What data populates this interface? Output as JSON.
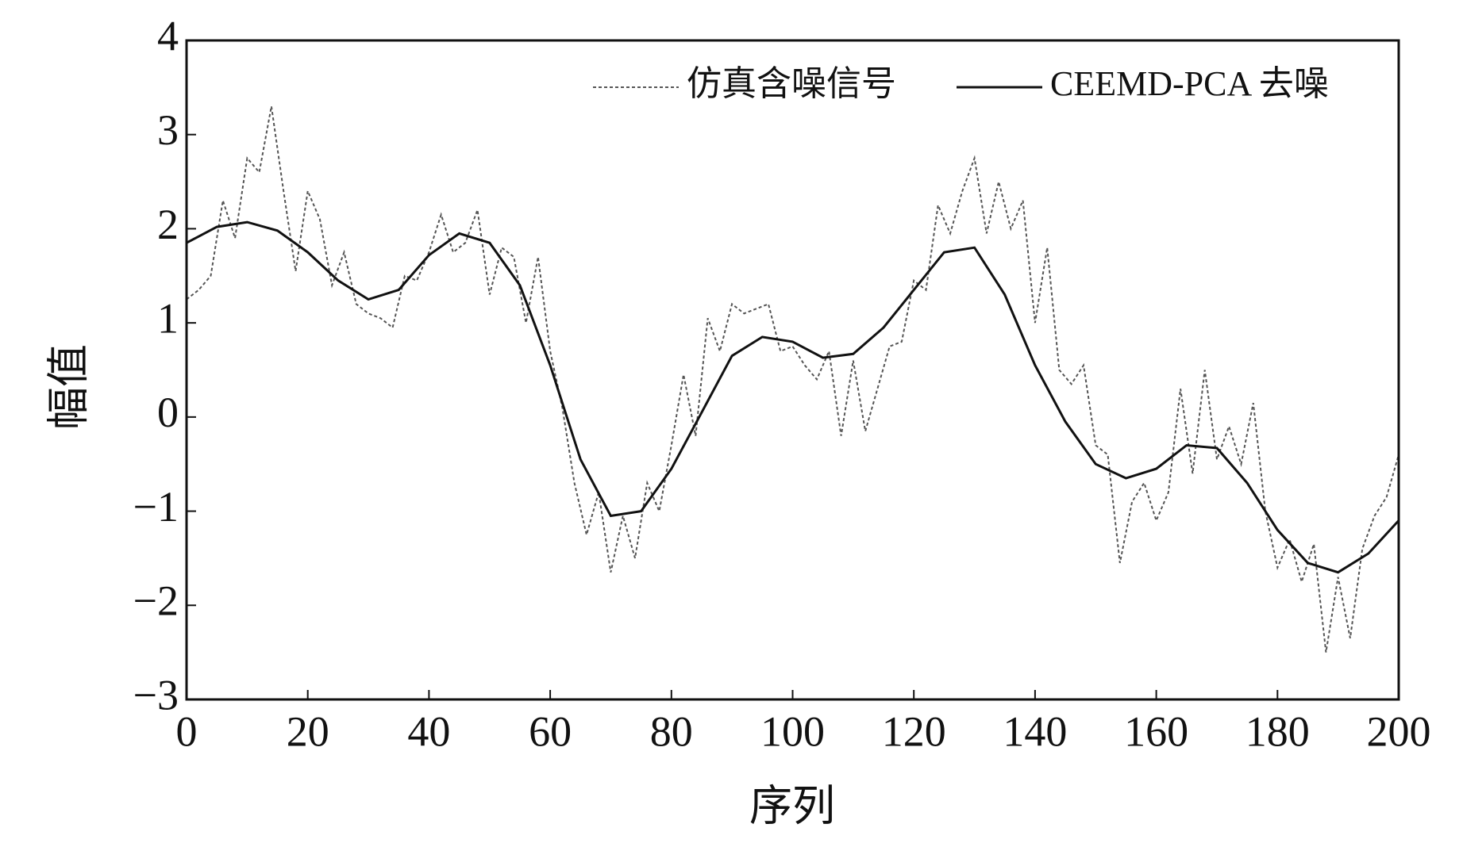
{
  "chart_data": {
    "type": "line",
    "xlabel": "序列",
    "ylabel": "幅值",
    "xlim": [
      0,
      200
    ],
    "ylim": [
      -3,
      4
    ],
    "xticks": [
      0,
      20,
      40,
      60,
      80,
      100,
      120,
      140,
      160,
      180,
      200
    ],
    "yticks": [
      {
        "value": -3,
        "label": "−3"
      },
      {
        "value": -2,
        "label": "−2"
      },
      {
        "value": -1,
        "label": "−1"
      },
      0,
      1,
      2,
      3,
      4
    ],
    "legend": "upper right",
    "series": [
      {
        "name": "仿真含噪信号",
        "color": "#555555",
        "dashed": true,
        "x": [
          0,
          2,
          4,
          6,
          8,
          10,
          12,
          14,
          16,
          18,
          20,
          22,
          24,
          26,
          28,
          30,
          32,
          34,
          36,
          38,
          40,
          42,
          44,
          46,
          48,
          50,
          52,
          54,
          56,
          58,
          60,
          62,
          64,
          66,
          68,
          70,
          72,
          74,
          76,
          78,
          80,
          82,
          84,
          86,
          88,
          90,
          92,
          94,
          96,
          98,
          100,
          102,
          104,
          106,
          108,
          110,
          112,
          114,
          116,
          118,
          120,
          122,
          124,
          126,
          128,
          130,
          132,
          134,
          136,
          138,
          140,
          142,
          144,
          146,
          148,
          150,
          152,
          154,
          156,
          158,
          160,
          162,
          164,
          166,
          168,
          170,
          172,
          174,
          176,
          178,
          180,
          182,
          184,
          186,
          188,
          190,
          192,
          194,
          196,
          198,
          200
        ],
        "values": [
          1.25,
          1.35,
          1.5,
          2.3,
          1.9,
          2.75,
          2.6,
          3.3,
          2.4,
          1.55,
          2.4,
          2.1,
          1.4,
          1.75,
          1.2,
          1.1,
          1.05,
          0.95,
          1.5,
          1.45,
          1.75,
          2.15,
          1.75,
          1.85,
          2.2,
          1.3,
          1.8,
          1.7,
          1.0,
          1.7,
          0.7,
          0.1,
          -0.7,
          -1.25,
          -0.8,
          -1.65,
          -1.05,
          -1.5,
          -0.7,
          -1.0,
          -0.3,
          0.45,
          -0.2,
          1.05,
          0.7,
          1.2,
          1.1,
          1.15,
          1.2,
          0.7,
          0.75,
          0.55,
          0.4,
          0.7,
          -0.2,
          0.6,
          -0.15,
          0.3,
          0.75,
          0.8,
          1.45,
          1.35,
          2.25,
          1.95,
          2.4,
          2.75,
          1.95,
          2.5,
          2.0,
          2.3,
          1.0,
          1.8,
          0.5,
          0.35,
          0.55,
          -0.3,
          -0.4,
          -1.55,
          -0.9,
          -0.7,
          -1.1,
          -0.8,
          0.3,
          -0.6,
          0.5,
          -0.45,
          -0.1,
          -0.5,
          0.15,
          -1.0,
          -1.6,
          -1.3,
          -1.75,
          -1.35,
          -2.5,
          -1.7,
          -2.35,
          -1.4,
          -1.05,
          -0.85,
          -0.4
        ]
      },
      {
        "name": "CEEMD-PCA 去噪",
        "color": "#111111",
        "dashed": false,
        "x": [
          0,
          5,
          10,
          15,
          20,
          25,
          30,
          35,
          40,
          45,
          50,
          55,
          60,
          65,
          70,
          75,
          80,
          85,
          90,
          95,
          100,
          105,
          110,
          115,
          120,
          125,
          130,
          135,
          140,
          145,
          150,
          155,
          160,
          165,
          170,
          175,
          180,
          185,
          190,
          195,
          200
        ],
        "values": [
          1.85,
          2.02,
          2.07,
          1.98,
          1.75,
          1.45,
          1.25,
          1.35,
          1.72,
          1.95,
          1.85,
          1.4,
          0.55,
          -0.45,
          -1.05,
          -1.0,
          -0.55,
          0.05,
          0.65,
          0.85,
          0.8,
          0.63,
          0.67,
          0.95,
          1.35,
          1.75,
          1.8,
          1.3,
          0.55,
          -0.05,
          -0.5,
          -0.65,
          -0.55,
          -0.3,
          -0.33,
          -0.7,
          -1.2,
          -1.55,
          -1.65,
          -1.45,
          -1.1
        ]
      }
    ]
  }
}
